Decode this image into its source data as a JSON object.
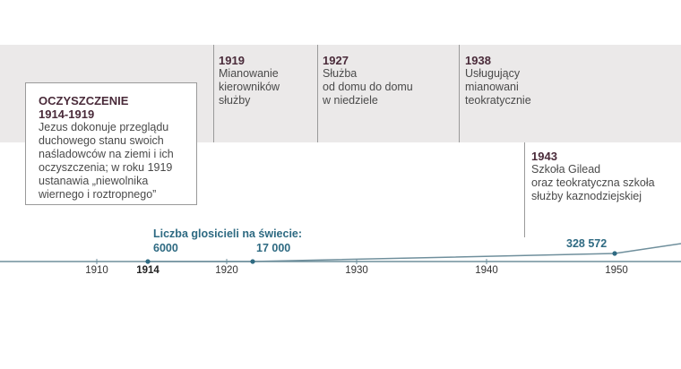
{
  "colors": {
    "band": "#ebe9e9",
    "accent_teal": "#2e6a82",
    "heading_dark": "#4a2b3a",
    "axis": "#6f8f9c"
  },
  "events": [
    {
      "year": "1919",
      "lines": [
        "Mianowanie",
        "kierowników",
        "służby"
      ]
    },
    {
      "year": "1927",
      "lines": [
        "Służba",
        "od domu do domu",
        "w niedziele"
      ]
    },
    {
      "year": "1938",
      "lines": [
        "Usługujący",
        "mianowani",
        "teokratycznie"
      ]
    },
    {
      "year": "1943",
      "lines": [
        "Szkoła Gilead",
        "oraz teokratyczna szkoła",
        "służby kaznodziejskiej"
      ]
    }
  ],
  "cleansing": {
    "title": "OCZYSZCZENIE",
    "range": "1914-1919",
    "lines": [
      "Jezus dokonuje przeglądu",
      "duchowego stanu swoich",
      "naśladowców na ziemi i ich",
      "oczyszczenia; w roku 1919",
      "ustanawia „niewolnika",
      "wiernego i roztropnego”"
    ]
  },
  "publishers": {
    "label": "Liczba glosicieli na świecie:",
    "points": [
      {
        "year": 1914,
        "value": "6000"
      },
      {
        "year": 1922,
        "value": "17 000"
      },
      {
        "year": 1950,
        "value": "328 572"
      }
    ]
  },
  "axis": {
    "ticks": [
      "1910",
      "1914",
      "1920",
      "1930",
      "1940",
      "1950"
    ],
    "highlight_tick": "1914"
  }
}
